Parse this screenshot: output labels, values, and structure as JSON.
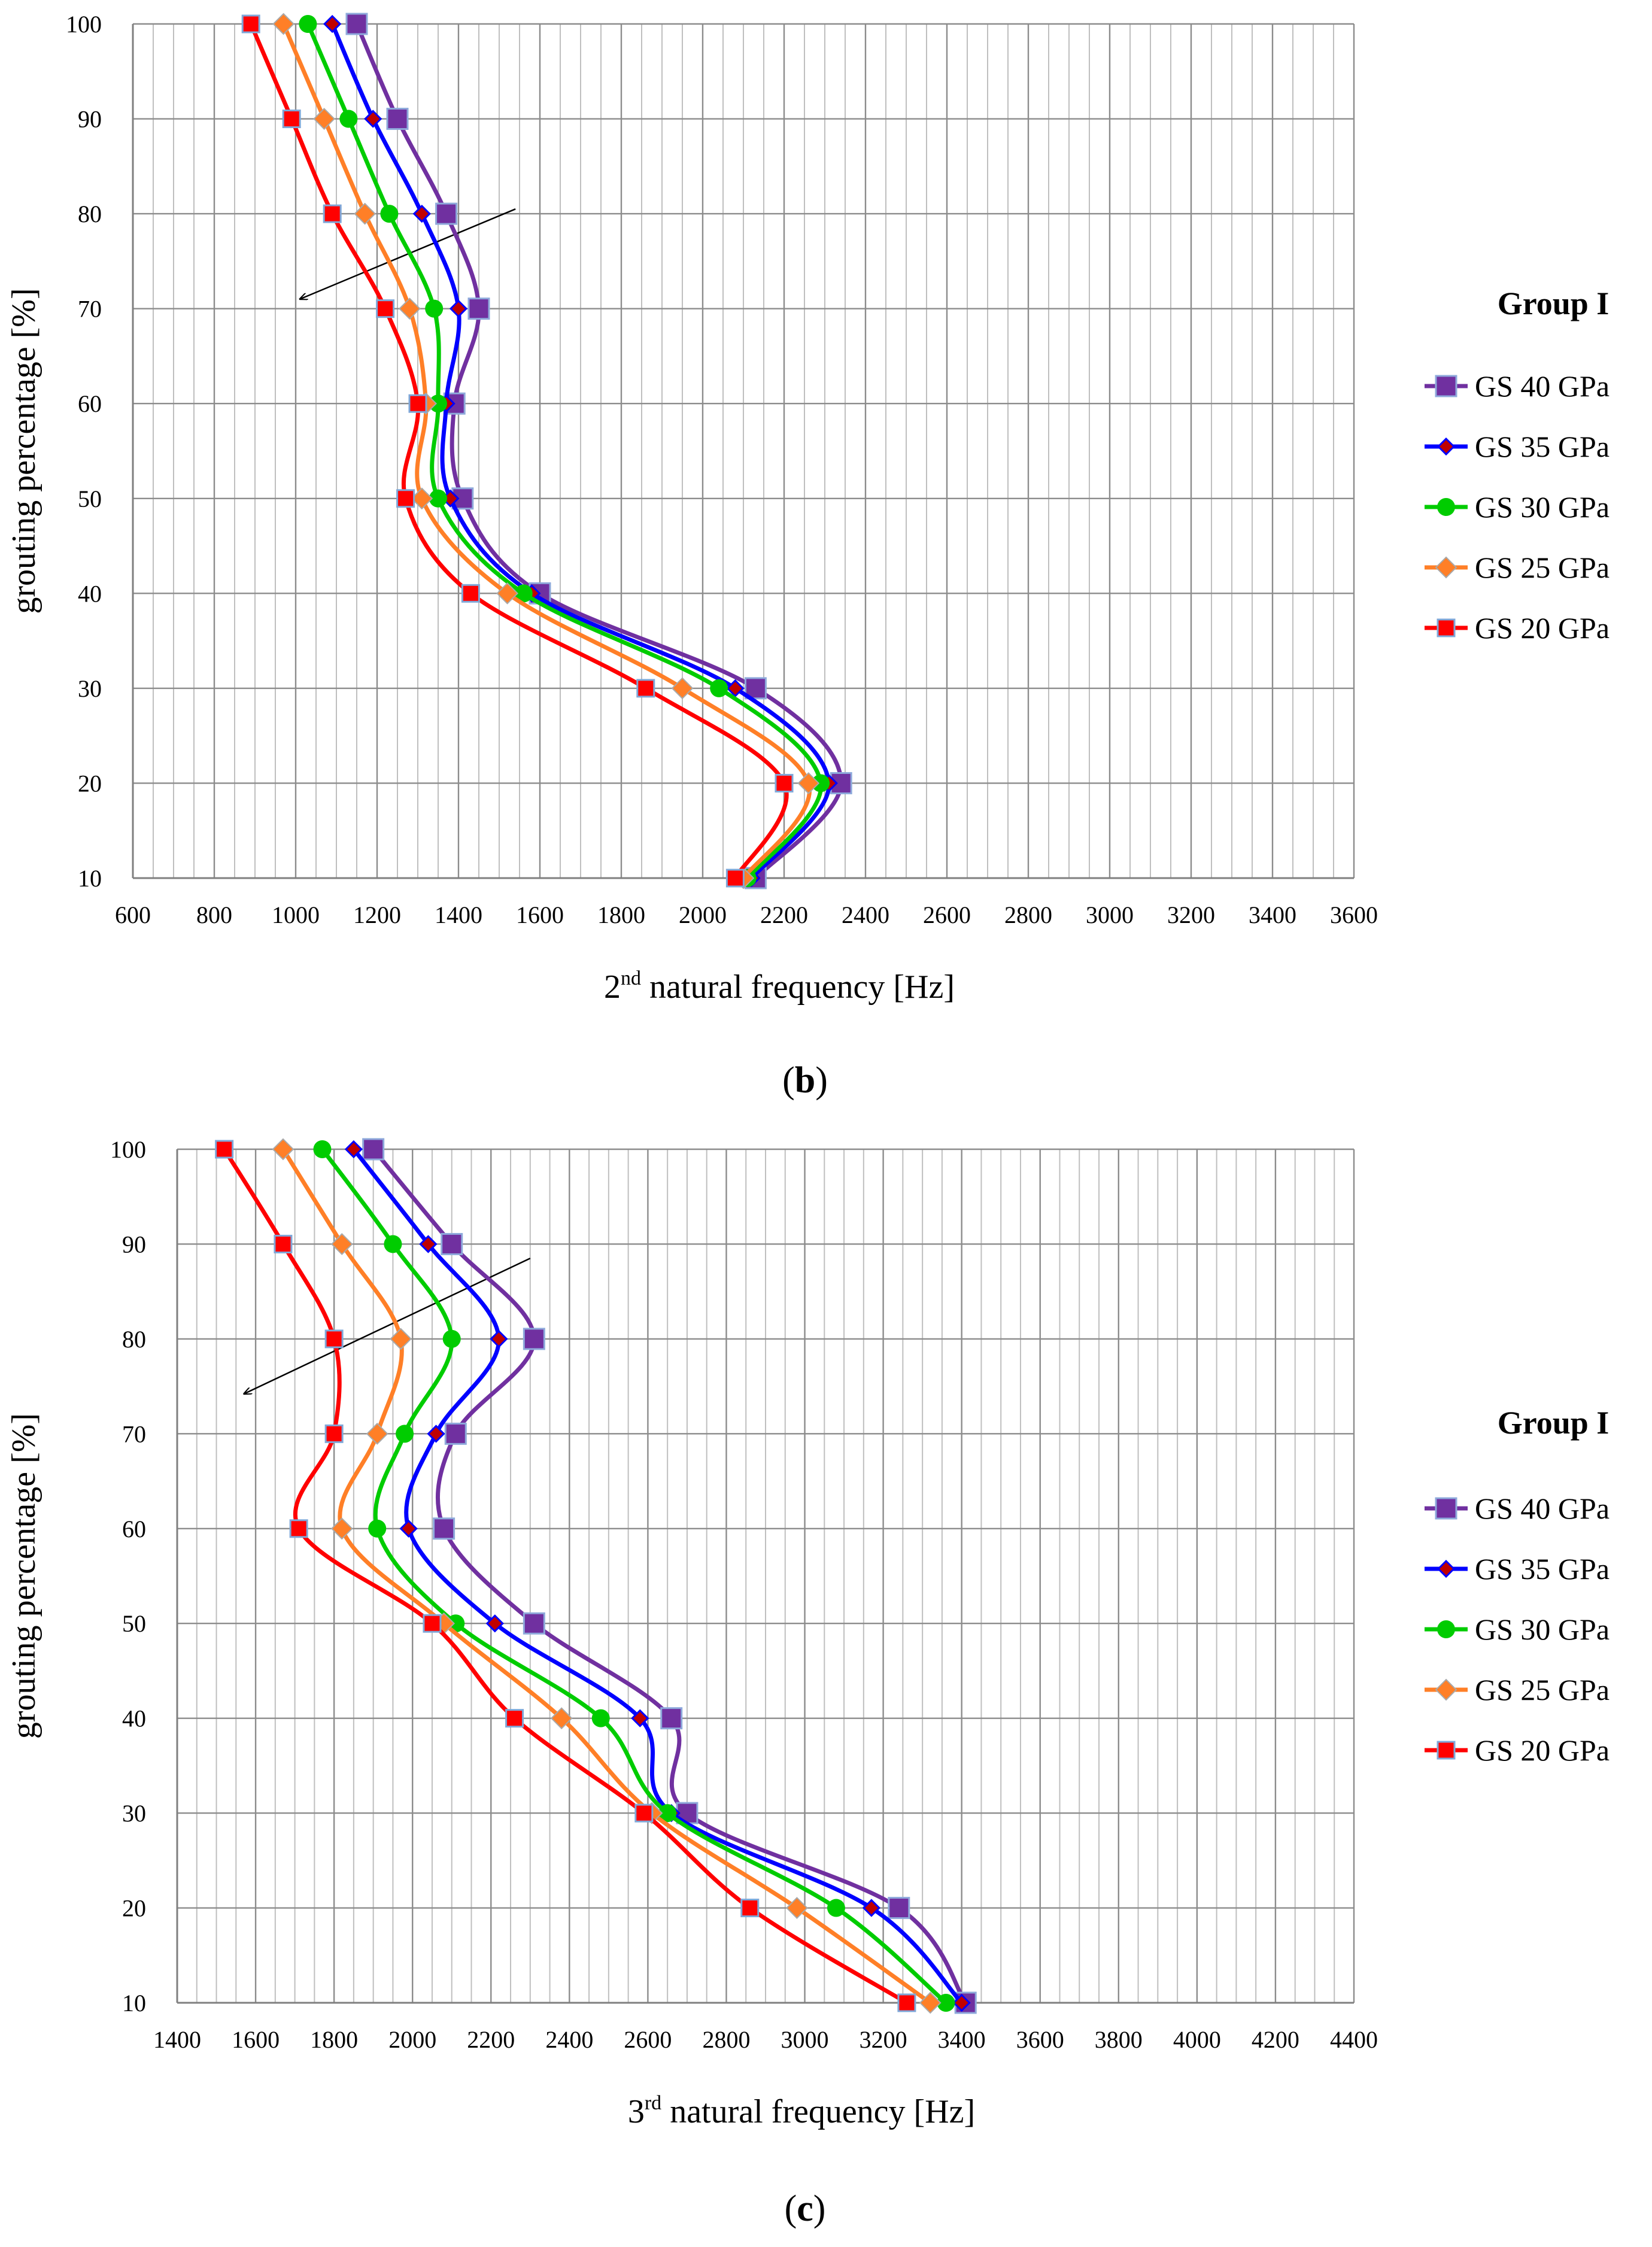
{
  "chart_data": [
    {
      "type": "line",
      "panel_label": "b",
      "xlabel_prefix": "2",
      "xlabel_sup": "nd",
      "xlabel_rest": " natural frequency [Hz]",
      "ylabel": "grouting percentage [%]",
      "xlim": [
        600,
        3600
      ],
      "ylim": [
        10,
        100
      ],
      "x_ticks": [
        "600",
        "800",
        "1000",
        "1200",
        "1400",
        "1600",
        "1800",
        "2000",
        "2200",
        "2400",
        "2600",
        "2800",
        "3000",
        "3200",
        "3400",
        "3600"
      ],
      "y_ticks": [
        "10",
        "20",
        "30",
        "40",
        "50",
        "60",
        "70",
        "80",
        "90",
        "100"
      ],
      "legend_title": "Group I",
      "arrow": {
        "from": [
          1540,
          80.5
        ],
        "to": [
          1010,
          71
        ]
      },
      "y_values": [
        100,
        90,
        80,
        70,
        60,
        50,
        40,
        30,
        20,
        10
      ],
      "series": [
        {
          "name": "GS 40 GPa",
          "color": "#7030A0",
          "marker": "square-large",
          "x": [
            1150,
            1250,
            1370,
            1450,
            1390,
            1410,
            1600,
            2130,
            2340,
            2130
          ]
        },
        {
          "name": "GS 35 GPa",
          "color": "#0000FF",
          "marker": "diamond-small",
          "x": [
            1090,
            1190,
            1310,
            1400,
            1370,
            1380,
            1580,
            2080,
            2310,
            2120
          ]
        },
        {
          "name": "GS 30 GPa",
          "color": "#00CC00",
          "marker": "circle",
          "x": [
            1030,
            1130,
            1230,
            1340,
            1350,
            1350,
            1560,
            2040,
            2290,
            2110
          ]
        },
        {
          "name": "GS 25 GPa",
          "color": "#FF7F27",
          "marker": "diamond",
          "x": [
            970,
            1070,
            1170,
            1280,
            1320,
            1310,
            1520,
            1950,
            2260,
            2100
          ]
        },
        {
          "name": "GS 20 GPa",
          "color": "#FF0000",
          "marker": "square",
          "x": [
            890,
            990,
            1090,
            1220,
            1300,
            1270,
            1430,
            1860,
            2200,
            2080
          ]
        }
      ]
    },
    {
      "type": "line",
      "panel_label": "c",
      "xlabel_prefix": "3",
      "xlabel_sup": "rd",
      "xlabel_rest": " natural frequency [Hz]",
      "ylabel": "grouting percentage [%]",
      "xlim": [
        1400,
        4400
      ],
      "ylim": [
        10,
        100
      ],
      "x_ticks": [
        "1400",
        "1600",
        "1800",
        "2000",
        "2200",
        "2400",
        "2600",
        "2800",
        "3000",
        "3200",
        "3400",
        "3600",
        "3800",
        "4000",
        "4200",
        "4400"
      ],
      "y_ticks": [
        "10",
        "20",
        "30",
        "40",
        "50",
        "60",
        "70",
        "80",
        "90",
        "100"
      ],
      "legend_title": "Group I",
      "arrow": {
        "from": [
          2300,
          88.5
        ],
        "to": [
          1570,
          74.2
        ]
      },
      "y_values": [
        100,
        90,
        80,
        70,
        60,
        50,
        40,
        30,
        20,
        10
      ],
      "series": [
        {
          "name": "GS 40 GPa",
          "color": "#7030A0",
          "marker": "square-large",
          "x": [
            1900,
            2100,
            2310,
            2110,
            2080,
            2310,
            2660,
            2700,
            3240,
            3410
          ]
        },
        {
          "name": "GS 35 GPa",
          "color": "#0000FF",
          "marker": "diamond-small",
          "x": [
            1850,
            2040,
            2220,
            2060,
            1990,
            2210,
            2580,
            2660,
            3170,
            3400
          ]
        },
        {
          "name": "GS 30 GPa",
          "color": "#00CC00",
          "marker": "circle",
          "x": [
            1770,
            1950,
            2100,
            1980,
            1910,
            2110,
            2480,
            2650,
            3080,
            3360
          ]
        },
        {
          "name": "GS 25 GPa",
          "color": "#FF7F27",
          "marker": "diamond",
          "x": [
            1670,
            1820,
            1970,
            1910,
            1820,
            2080,
            2380,
            2610,
            2980,
            3320
          ]
        },
        {
          "name": "GS 20 GPa",
          "color": "#FF0000",
          "marker": "square",
          "x": [
            1520,
            1670,
            1800,
            1800,
            1710,
            2050,
            2260,
            2590,
            2860,
            3260
          ]
        }
      ]
    }
  ]
}
